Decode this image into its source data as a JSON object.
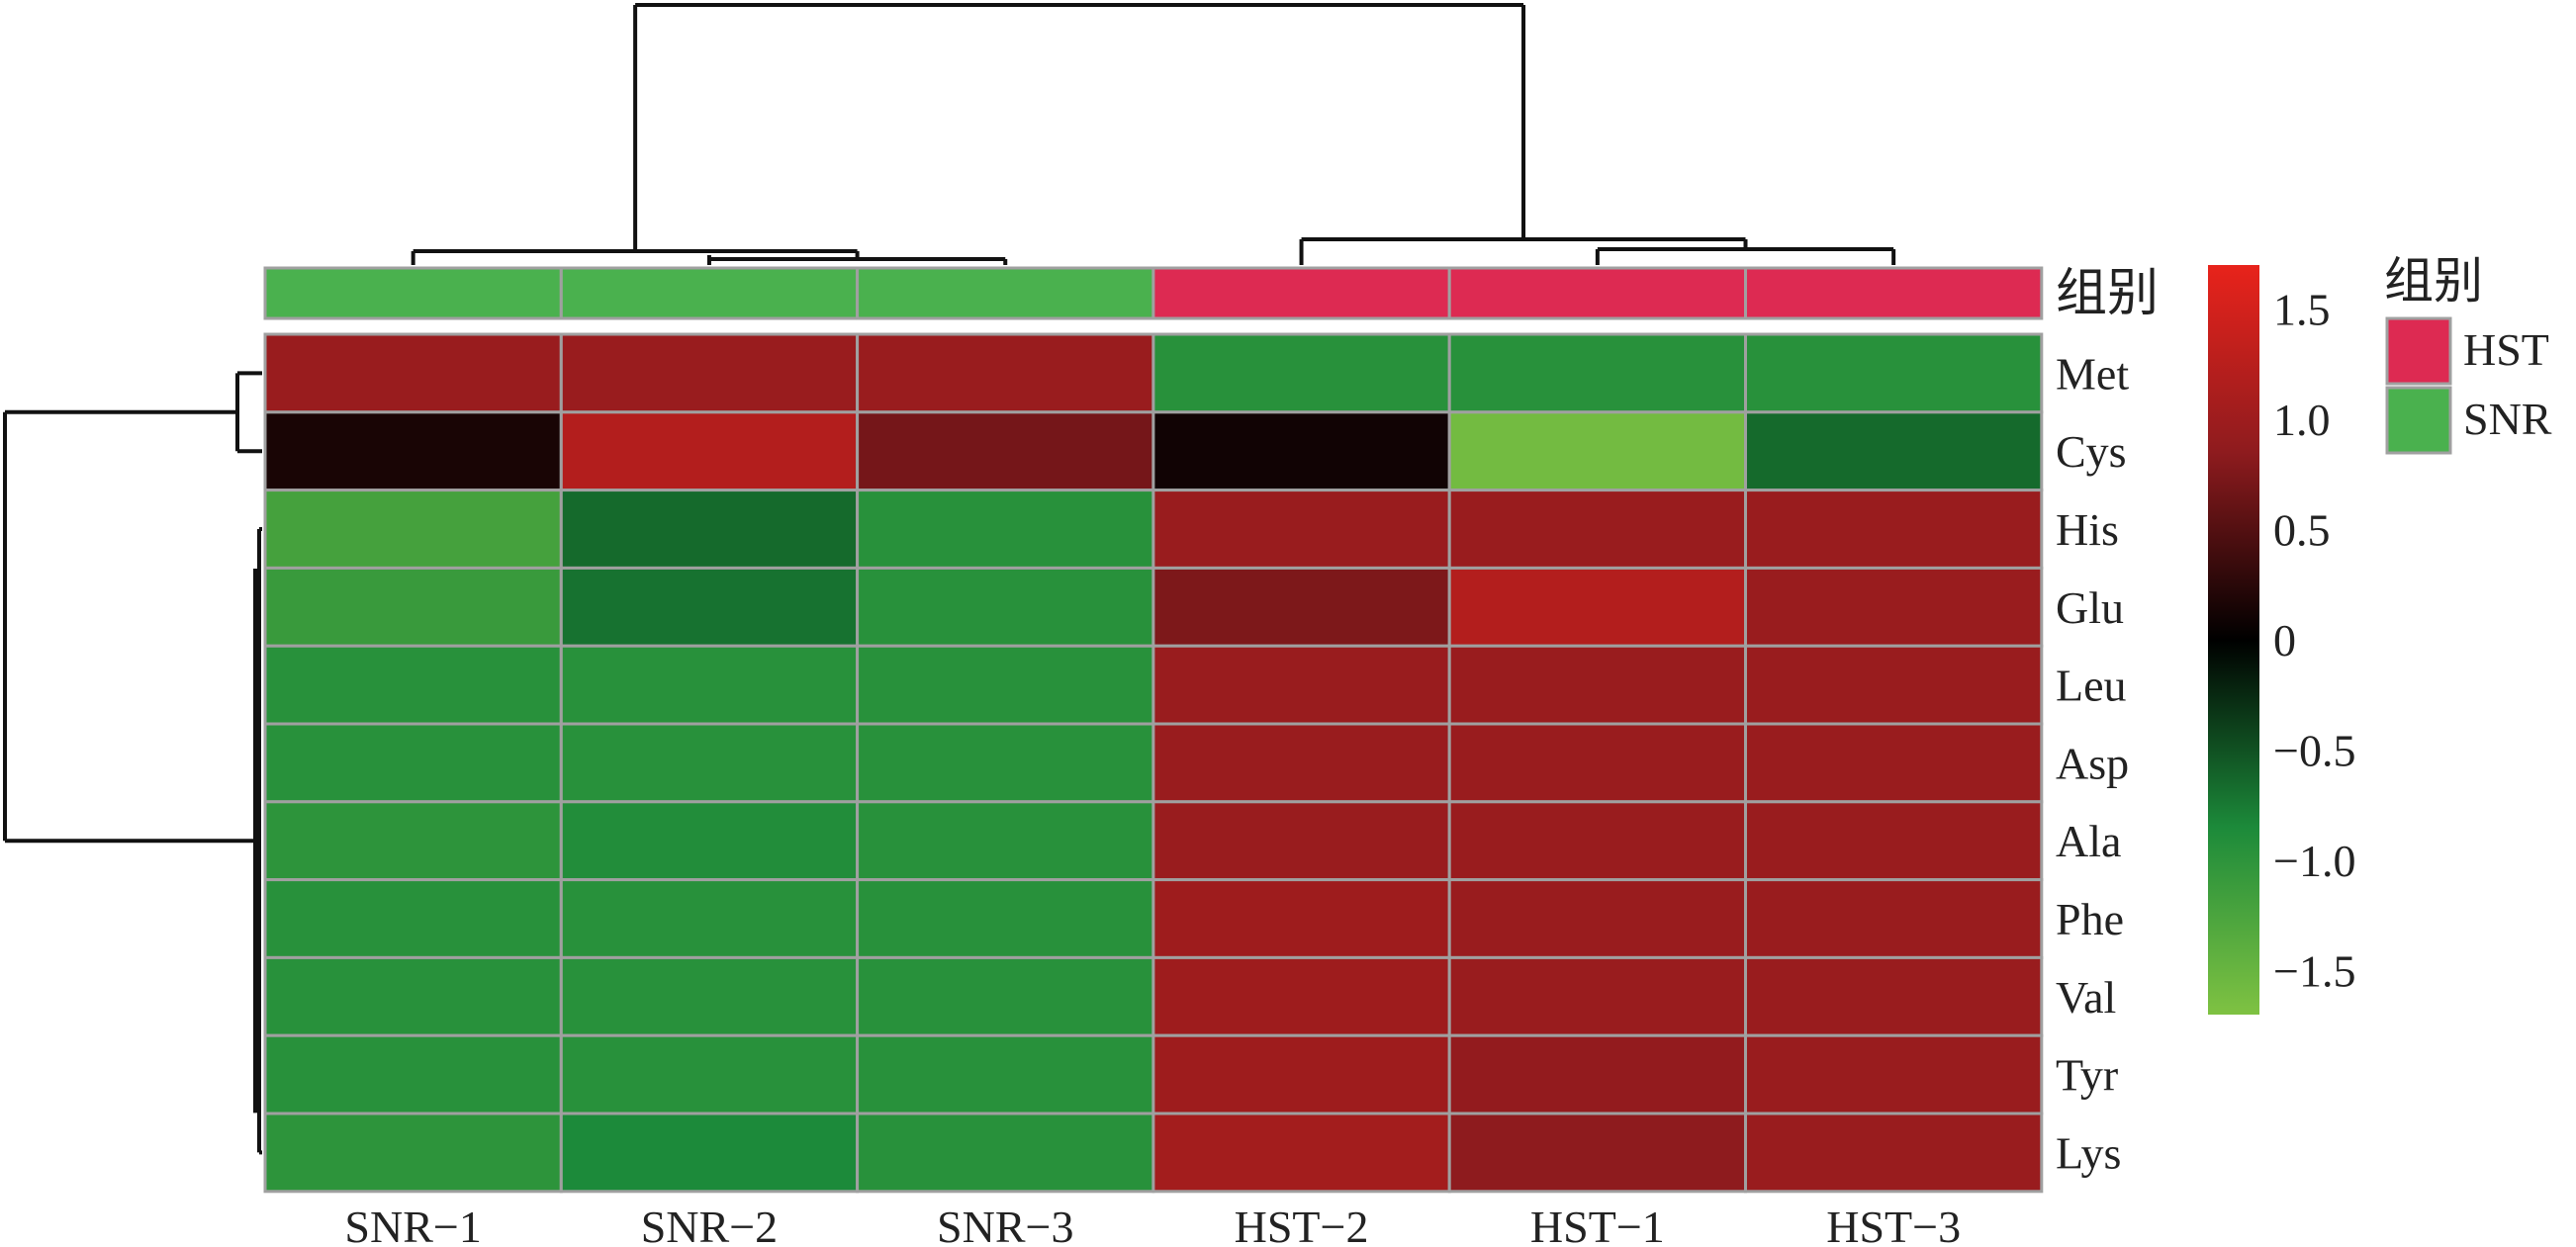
{
  "chart_data": {
    "type": "heatmap",
    "columns": [
      "SNR−1",
      "SNR−2",
      "SNR−3",
      "HST−2",
      "HST−1",
      "HST−3"
    ],
    "rows": [
      "Met",
      "Cys",
      "His",
      "Glu",
      "Leu",
      "Asp",
      "Ala",
      "Phe",
      "Val",
      "Tyr",
      "Lys"
    ],
    "values": [
      [
        0.95,
        0.95,
        0.95,
        -0.95,
        -0.95,
        -0.95
      ],
      [
        0.15,
        1.2,
        0.7,
        0.1,
        -1.6,
        -0.65
      ],
      [
        -1.2,
        -0.65,
        -0.95,
        0.95,
        0.95,
        0.95
      ],
      [
        -1.1,
        -0.7,
        -0.95,
        0.75,
        1.2,
        0.95
      ],
      [
        -0.95,
        -0.95,
        -0.95,
        0.95,
        0.95,
        0.95
      ],
      [
        -0.95,
        -0.95,
        -0.95,
        0.95,
        0.95,
        0.95
      ],
      [
        -1.0,
        -0.9,
        -0.95,
        0.95,
        0.95,
        0.95
      ],
      [
        -0.95,
        -0.95,
        -0.95,
        1.0,
        0.95,
        0.95
      ],
      [
        -0.95,
        -0.95,
        -0.95,
        1.0,
        0.95,
        0.95
      ],
      [
        -0.95,
        -0.95,
        -0.95,
        1.0,
        0.9,
        0.95
      ],
      [
        -1.0,
        -0.85,
        -0.95,
        1.05,
        0.85,
        0.95
      ]
    ],
    "color_scale": {
      "min": -1.7,
      "max": 1.7,
      "low_color": "#7fc242",
      "mid_color": "#000000",
      "high_color": "#e8231b",
      "ticks": [
        "1.5",
        "1.0",
        "0.5",
        "0",
        "−0.5",
        "−1.0",
        "−1.5"
      ],
      "tick_values": [
        1.5,
        1.0,
        0.5,
        0,
        -0.5,
        -1.0,
        -1.5
      ]
    },
    "annotation": {
      "title": "组别",
      "column_groups": [
        "SNR",
        "SNR",
        "SNR",
        "HST",
        "HST",
        "HST"
      ],
      "legend": [
        {
          "label": "HST",
          "color": "#dd2a52"
        },
        {
          "label": "SNR",
          "color": "#4ab14e"
        }
      ]
    },
    "row_annotation_label": "组别",
    "column_dendrogram": "((SNR−1,(SNR−2,SNR−3)),(HST−2,(HST−1,HST−3)))",
    "row_dendrogram": "((Met,Cys),(His,Glu,Leu,Asp,Ala,Phe,Val,Tyr,Lys))"
  }
}
